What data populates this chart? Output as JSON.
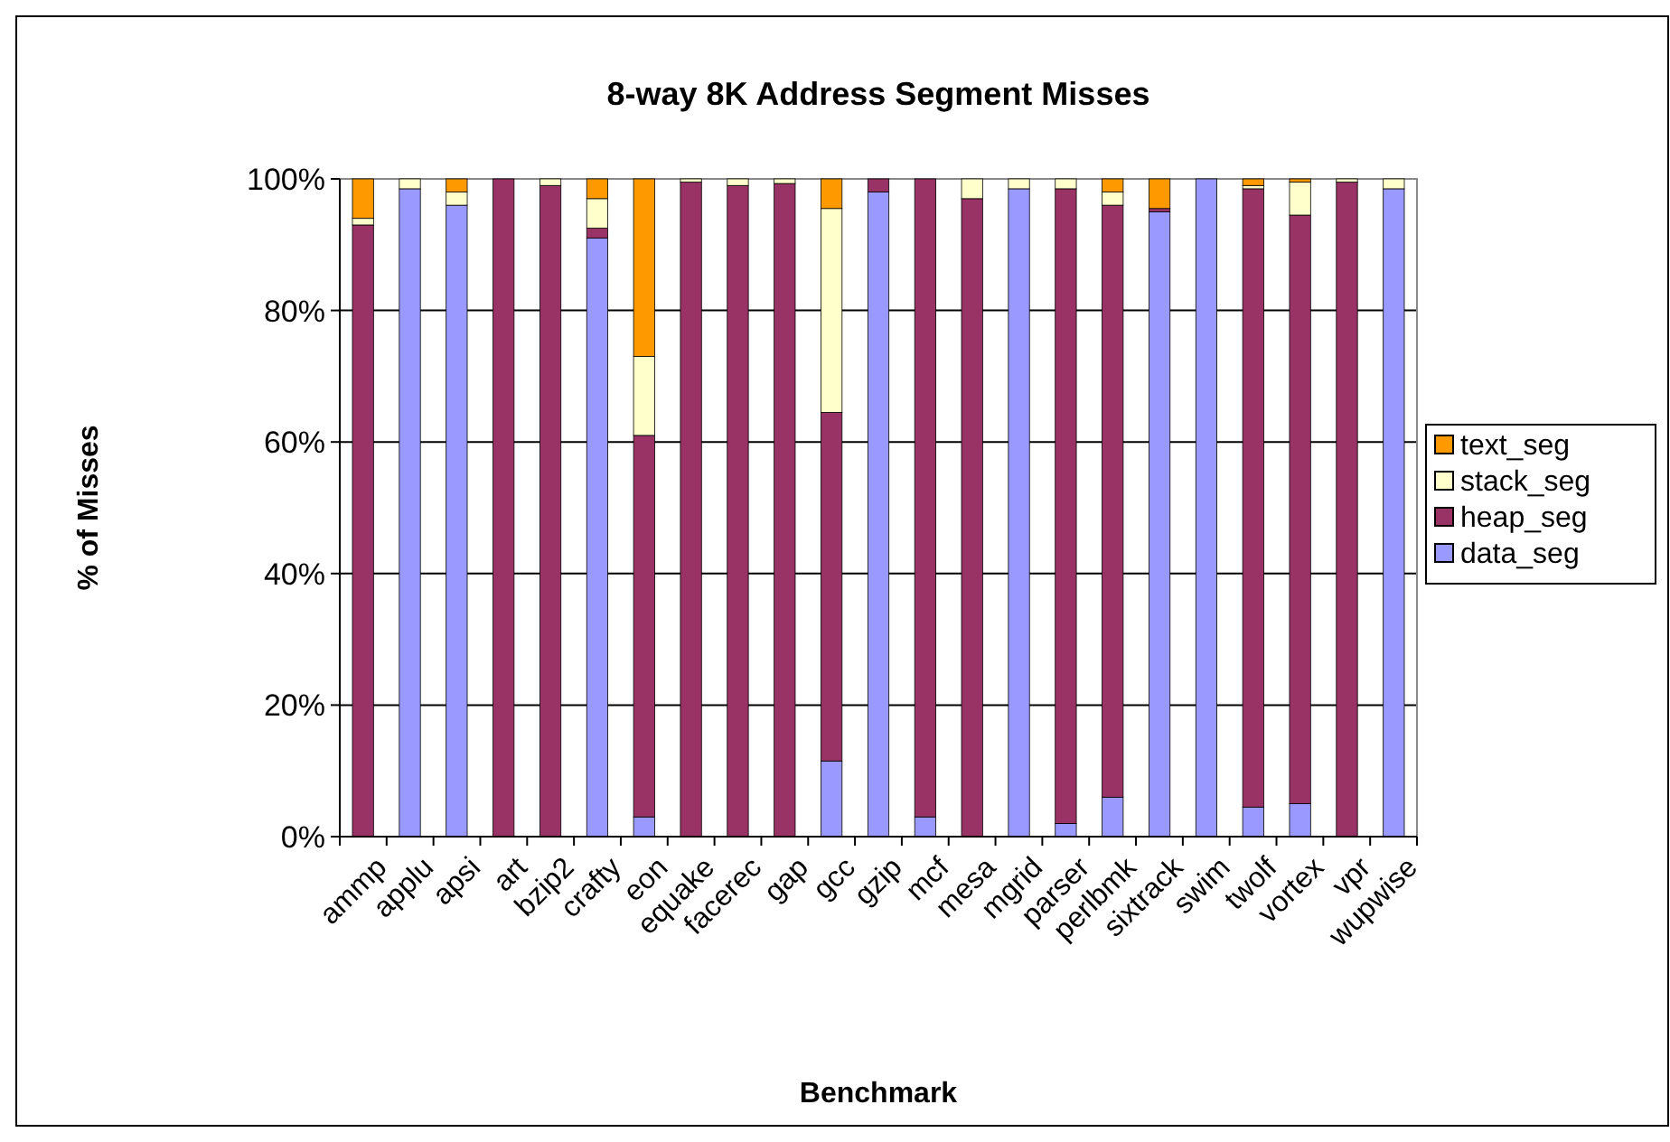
{
  "chart_data": {
    "type": "bar",
    "stacked": true,
    "title": "8-way 8K Address Segment Misses",
    "xlabel": "Benchmark",
    "ylabel": "% of Misses",
    "categories": [
      "ammp",
      "applu",
      "apsi",
      "art",
      "bzip2",
      "crafty",
      "eon",
      "equake",
      "facerec",
      "gap",
      "gcc",
      "gzip",
      "mcf",
      "mesa",
      "mgrid",
      "parser",
      "perlbmk",
      "sixtrack",
      "swim",
      "twolf",
      "vortex",
      "vpr",
      "wupwise"
    ],
    "series": [
      {
        "name": "data_seg",
        "color": "#9999ff",
        "values": [
          0,
          98.5,
          96,
          0,
          0,
          91,
          3,
          0,
          0,
          0,
          11.5,
          98,
          3,
          0,
          98.5,
          2,
          6,
          95,
          100,
          4.5,
          5,
          0,
          98.5
        ]
      },
      {
        "name": "heap_seg",
        "color": "#993366",
        "values": [
          93,
          0,
          0,
          100,
          99,
          1.5,
          58,
          99.5,
          99,
          99.3,
          53,
          2,
          97,
          97,
          0,
          96.5,
          90,
          0.5,
          0,
          94,
          89.5,
          99.5,
          0
        ]
      },
      {
        "name": "stack_seg",
        "color": "#ffffcc",
        "values": [
          1,
          1.5,
          2,
          0,
          1,
          4.5,
          12,
          0.5,
          1,
          0.7,
          31,
          0,
          0,
          3,
          1.5,
          1.5,
          2,
          0,
          0,
          0.5,
          5,
          0.5,
          1.5
        ]
      },
      {
        "name": "text_seg",
        "color": "#ff9900",
        "values": [
          6,
          0,
          2,
          0,
          0,
          3,
          27,
          0,
          0,
          0,
          4.5,
          0,
          0,
          0,
          0,
          0,
          2,
          4.5,
          0,
          1,
          0.5,
          0,
          0
        ]
      }
    ],
    "ylim": [
      0,
      100
    ],
    "yticks": [
      {
        "value": 0,
        "label": "0%"
      },
      {
        "value": 20,
        "label": "20%"
      },
      {
        "value": 40,
        "label": "40%"
      },
      {
        "value": 60,
        "label": "60%"
      },
      {
        "value": 80,
        "label": "80%"
      },
      {
        "value": 100,
        "label": "100%"
      }
    ],
    "grid": "y",
    "legend": "right"
  }
}
